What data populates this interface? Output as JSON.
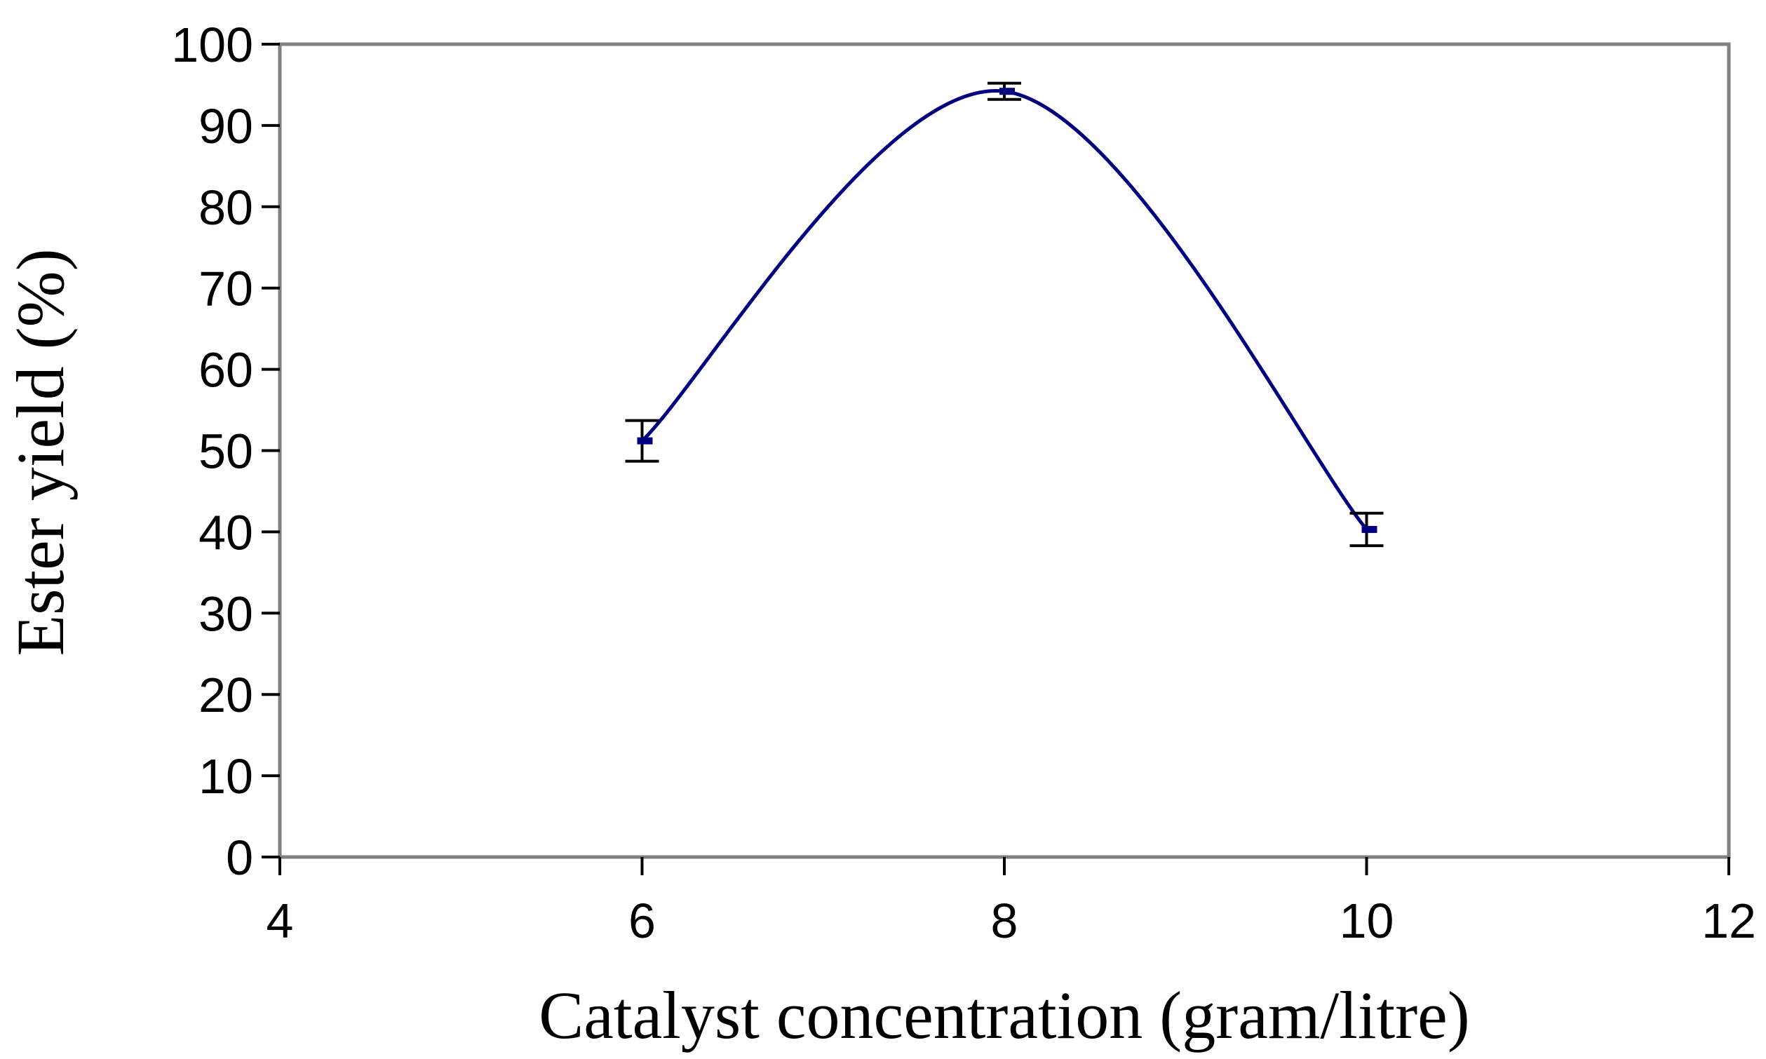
{
  "chart_data": {
    "type": "line",
    "title": "",
    "xlabel": "Catalyst concentration (gram/litre)",
    "ylabel": "Ester yield (%)",
    "xlim": [
      4,
      12
    ],
    "ylim": [
      0,
      100
    ],
    "xticks": [
      4,
      6,
      8,
      10,
      12
    ],
    "yticks": [
      0,
      10,
      20,
      30,
      40,
      50,
      60,
      70,
      80,
      90,
      100
    ],
    "grid": false,
    "legend": "none",
    "smooth": true,
    "series": [
      {
        "x": [
          6,
          8,
          10
        ],
        "y": [
          51.2,
          94.2,
          40.3
        ],
        "error": [
          2.5,
          1.0,
          2.0
        ],
        "color": "#000080"
      }
    ]
  }
}
